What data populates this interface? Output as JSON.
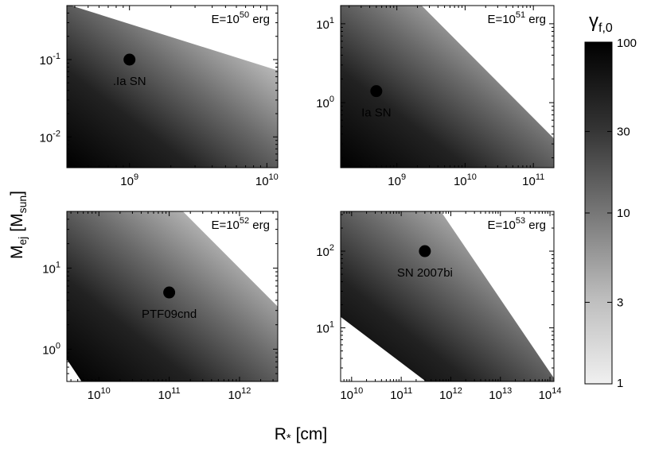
{
  "figure": {
    "ylabel_main": "M",
    "ylabel_sub": "ej",
    "ylabel_unit_open": " [M",
    "ylabel_unit_sub": "sun",
    "ylabel_unit_close": "]",
    "xlabel_main": "R",
    "xlabel_star": "*",
    "xlabel_unit": " [cm]"
  },
  "chart_data": [
    {
      "type": "heatmap",
      "title": "E=10^50 erg",
      "title_base": "E=10",
      "title_exp": "50",
      "title_unit": " erg",
      "xscale": "log",
      "yscale": "log",
      "xlim": [
        350000000.0,
        12000000000.0
      ],
      "ylim": [
        0.004,
        0.5
      ],
      "xticks": [
        {
          "v": 1000000000.0,
          "base": "10",
          "exp": "9"
        },
        {
          "v": 10000000000.0,
          "base": "10",
          "exp": "10"
        }
      ],
      "yticks": [
        {
          "v": 0.01,
          "base": "10",
          "exp": "-2"
        },
        {
          "v": 0.1,
          "base": "10",
          "exp": "-1"
        }
      ],
      "point": {
        "label": ".Ia SN",
        "x": 1000000000.0,
        "y": 0.1
      }
    },
    {
      "type": "heatmap",
      "title": "E=10^51 erg",
      "title_base": "E=10",
      "title_exp": "51",
      "title_unit": " erg",
      "xscale": "log",
      "yscale": "log",
      "xlim": [
        150000000.0,
        200000000000.0
      ],
      "ylim": [
        0.15,
        17
      ],
      "xticks": [
        {
          "v": 1000000000.0,
          "base": "10",
          "exp": "9"
        },
        {
          "v": 10000000000.0,
          "base": "10",
          "exp": "10"
        },
        {
          "v": 100000000000.0,
          "base": "10",
          "exp": "11"
        }
      ],
      "yticks": [
        {
          "v": 1,
          "base": "10",
          "exp": "0"
        },
        {
          "v": 10,
          "base": "10",
          "exp": "1"
        }
      ],
      "point": {
        "label": "Ia SN",
        "x": 500000000.0,
        "y": 1.4
      }
    },
    {
      "type": "heatmap",
      "title": "E=10^52 erg",
      "title_base": "E=10",
      "title_exp": "52",
      "title_unit": " erg",
      "xscale": "log",
      "yscale": "log",
      "xlim": [
        3500000000.0,
        3500000000000.0
      ],
      "ylim": [
        0.4,
        50
      ],
      "xticks": [
        {
          "v": 10000000000.0,
          "base": "10",
          "exp": "10"
        },
        {
          "v": 100000000000.0,
          "base": "10",
          "exp": "11"
        },
        {
          "v": 1000000000000.0,
          "base": "10",
          "exp": "12"
        }
      ],
      "yticks": [
        {
          "v": 1,
          "base": "10",
          "exp": "0"
        },
        {
          "v": 10,
          "base": "10",
          "exp": "1"
        }
      ],
      "point": {
        "label": "PTF09cnd",
        "x": 100000000000.0,
        "y": 5
      }
    },
    {
      "type": "heatmap",
      "title": "E=10^53 erg",
      "title_base": "E=10",
      "title_exp": "53",
      "title_unit": " erg",
      "xscale": "log",
      "yscale": "log",
      "xlim": [
        6000000000.0,
        120000000000000.0
      ],
      "ylim": [
        2,
        330
      ],
      "xticks": [
        {
          "v": 10000000000.0,
          "base": "10",
          "exp": "10"
        },
        {
          "v": 100000000000.0,
          "base": "10",
          "exp": "11"
        },
        {
          "v": 1000000000000.0,
          "base": "10",
          "exp": "12"
        },
        {
          "v": 10000000000000.0,
          "base": "10",
          "exp": "13"
        },
        {
          "v": 100000000000000.0,
          "base": "10",
          "exp": "14"
        }
      ],
      "yticks": [
        {
          "v": 10,
          "base": "10",
          "exp": "1"
        },
        {
          "v": 100,
          "base": "10",
          "exp": "2"
        }
      ],
      "point": {
        "label": "SN 2007bi",
        "x": 300000000000.0,
        "y": 100
      }
    }
  ],
  "colorbar": {
    "label_main": "γ",
    "label_sub": "f,0",
    "scale": "log",
    "range": [
      1,
      100
    ],
    "colors": {
      "low": "#f0f0f0",
      "high": "#000000"
    },
    "ticks": [
      {
        "v": 100,
        "text": "100"
      },
      {
        "v": 30,
        "text": "30"
      },
      {
        "v": 10,
        "text": "10"
      },
      {
        "v": 3,
        "text": "3"
      },
      {
        "v": 1,
        "text": "1"
      }
    ]
  }
}
